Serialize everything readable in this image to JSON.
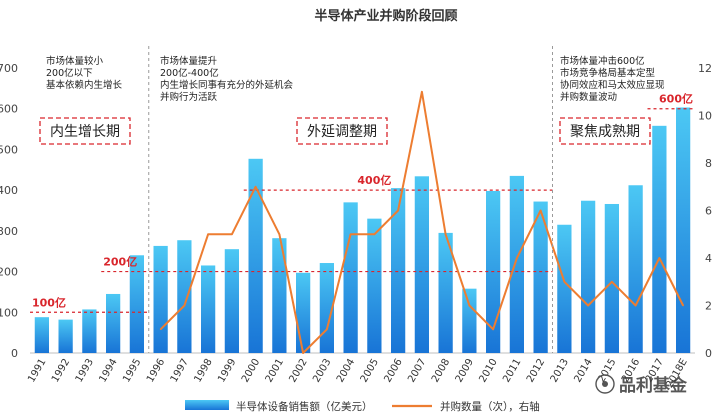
{
  "chart_data": {
    "type": "bar+line",
    "title": "半导体产业并购阶段回顾",
    "categories": [
      "1991",
      "1992",
      "1993",
      "1994",
      "1995",
      "1996",
      "1997",
      "1998",
      "1999",
      "2000",
      "2001",
      "2002",
      "2003",
      "2004",
      "2005",
      "2006",
      "2007",
      "2008",
      "2009",
      "2010",
      "2011",
      "2012",
      "2013",
      "2014",
      "2015",
      "2016",
      "2017",
      "2018E"
    ],
    "series": [
      {
        "name": "半导体设备销售额（亿美元）",
        "type": "bar",
        "axis": "left",
        "values": [
          88,
          82,
          107,
          145,
          240,
          263,
          277,
          215,
          255,
          477,
          282,
          197,
          221,
          370,
          330,
          405,
          434,
          295,
          158,
          398,
          435,
          372,
          315,
          374,
          366,
          412,
          558,
          603
        ]
      },
      {
        "name": "并购数量（次），右轴",
        "type": "line",
        "axis": "right",
        "values": [
          null,
          null,
          null,
          null,
          null,
          1,
          2,
          5,
          5,
          7,
          5,
          0,
          1,
          5,
          5,
          6,
          11,
          5,
          2,
          1,
          4,
          6,
          3,
          2,
          3,
          2,
          4,
          2
        ]
      }
    ],
    "y_left": {
      "min": 0,
      "max": 700,
      "ticks": [
        0,
        100,
        200,
        300,
        400,
        500,
        600,
        700
      ]
    },
    "y_right": {
      "min": 0,
      "max": 12,
      "ticks": [
        0,
        2,
        4,
        6,
        8,
        10,
        12
      ]
    },
    "colors": {
      "bar_top": "#4cc8f4",
      "bar_bottom": "#1874d6",
      "line": "#ed7d31",
      "accent_red": "#d9262c",
      "divider": "#9a9a9a"
    },
    "reference_lines": [
      {
        "label": "100亿",
        "value": 100,
        "from_index": 0,
        "to_index": 4
      },
      {
        "label": "200亿",
        "value": 200,
        "from_index": 3,
        "to_index": 21
      },
      {
        "label": "400亿",
        "value": 400,
        "from_index": 9,
        "to_index": 21
      },
      {
        "label": "600亿",
        "value": 600,
        "from_index": 26,
        "to_index": 27
      }
    ],
    "phases": [
      {
        "name": "内生增长期",
        "notes": [
          "市场体量较小",
          "200亿以下",
          "基本依赖内生增长"
        ]
      },
      {
        "name": "外延调整期",
        "notes": [
          "市场体量提升",
          "200亿-400亿",
          "内生增长同事有充分的外延机会",
          "并购行为活跃"
        ]
      },
      {
        "name": "聚焦成熟期",
        "notes": [
          "市场体量冲击600亿",
          "市场竞争格局基本定型",
          "协同效应和马太效应显现",
          "并购数量波动"
        ]
      }
    ],
    "legend": {
      "position": "bottom"
    },
    "watermark": "品利基金"
  }
}
